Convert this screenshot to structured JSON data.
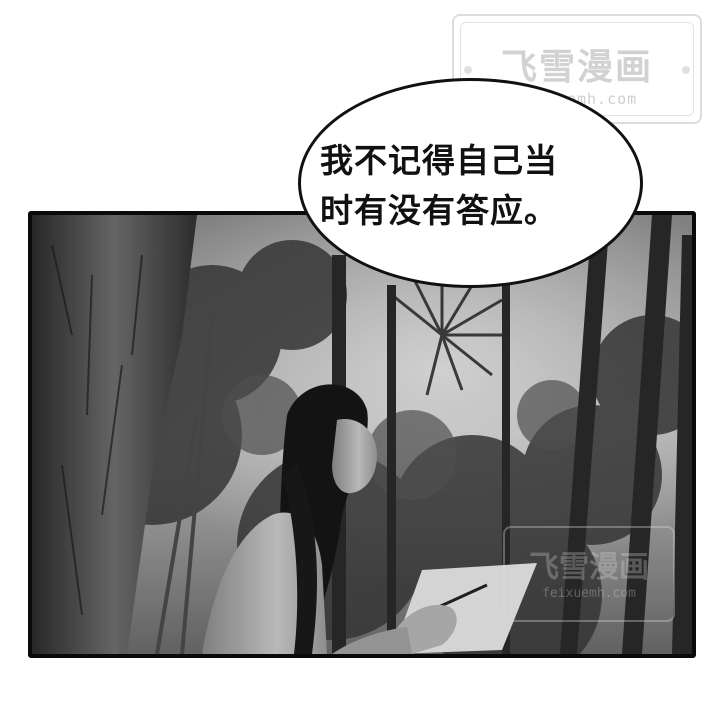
{
  "watermark": {
    "title": "飞雪漫画",
    "url": "feixuemh.com"
  },
  "bubble": {
    "line1": "我不记得自己当",
    "line2": "时有没有答应。"
  },
  "photo": {
    "icon": "forest-scene-image"
  },
  "colors": {
    "border": "#0a0a0a",
    "watermark": "#d2d2d2"
  }
}
